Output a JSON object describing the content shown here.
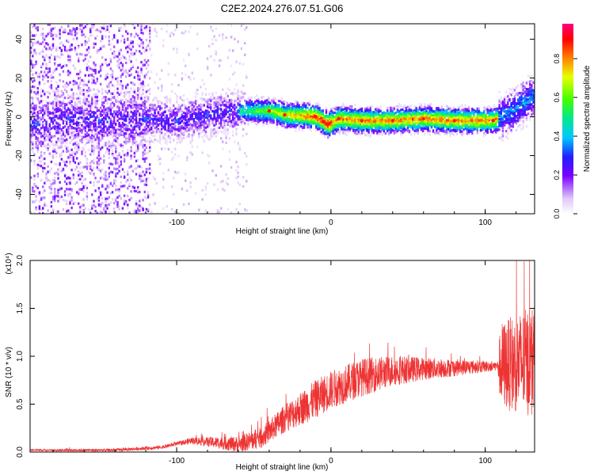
{
  "figure": {
    "title": "C2E2.2024.276.07.51.G06"
  },
  "chart_data": [
    {
      "type": "heatmap",
      "xlabel": "Height of straight line (km)",
      "ylabel": "Frequency (Hz)",
      "xlim": [
        -195,
        132
      ],
      "ylim": [
        -50,
        48
      ],
      "xticks": [
        -100,
        0,
        100
      ],
      "yticks": [
        -40,
        -20,
        0,
        20,
        40
      ],
      "colorbar": {
        "label": "Normalized spectral amplitude",
        "ticks": [
          "0.0",
          "0.2",
          "0.4",
          "0.6",
          "0.8"
        ],
        "tick_values": [
          0,
          0.2,
          0.4,
          0.6,
          0.8
        ],
        "range": [
          0,
          0.98
        ]
      },
      "ridge_frequency": [
        {
          "x": -190,
          "y": -4
        },
        {
          "x": -170,
          "y": -1
        },
        {
          "x": -150,
          "y": -2
        },
        {
          "x": -120,
          "y": -1
        },
        {
          "x": -100,
          "y": -2
        },
        {
          "x": -80,
          "y": 1
        },
        {
          "x": -60,
          "y": 3
        },
        {
          "x": -40,
          "y": 3
        },
        {
          "x": -30,
          "y": 1
        },
        {
          "x": -10,
          "y": 0
        },
        {
          "x": -2,
          "y": -4
        },
        {
          "x": 5,
          "y": -1
        },
        {
          "x": 20,
          "y": -2
        },
        {
          "x": 40,
          "y": -2
        },
        {
          "x": 60,
          "y": -1
        },
        {
          "x": 80,
          "y": -2
        },
        {
          "x": 105,
          "y": -2
        },
        {
          "x": 115,
          "y": 2
        },
        {
          "x": 130,
          "y": 10
        }
      ]
    },
    {
      "type": "line",
      "xlabel": "Height of straight line (km)",
      "ylabel": "SNR (10 * v/v)",
      "yscale_label": "(x10⁴)",
      "xlim": [
        -195,
        132
      ],
      "ylim": [
        0,
        2.0
      ],
      "xticks": [
        -100,
        0,
        100
      ],
      "yticks": [
        "0.0",
        "0.5",
        "1.0",
        "1.5",
        "2.0"
      ],
      "ytick_values": [
        0,
        0.5,
        1.0,
        1.5,
        2.0
      ],
      "series_color": "#ee3333",
      "trend": [
        {
          "x": -195,
          "y": 0.02
        },
        {
          "x": -140,
          "y": 0.02
        },
        {
          "x": -110,
          "y": 0.05
        },
        {
          "x": -90,
          "y": 0.12
        },
        {
          "x": -60,
          "y": 0.08
        },
        {
          "x": -45,
          "y": 0.15
        },
        {
          "x": -30,
          "y": 0.35
        },
        {
          "x": -10,
          "y": 0.55
        },
        {
          "x": 0,
          "y": 0.65
        },
        {
          "x": 20,
          "y": 0.78
        },
        {
          "x": 40,
          "y": 0.85
        },
        {
          "x": 60,
          "y": 0.87
        },
        {
          "x": 80,
          "y": 0.88
        },
        {
          "x": 108,
          "y": 0.9
        },
        {
          "x": 132,
          "y": 0.95
        }
      ],
      "spread": [
        {
          "x": -195,
          "y": 0.01
        },
        {
          "x": -100,
          "y": 0.02
        },
        {
          "x": -80,
          "y": 0.05
        },
        {
          "x": -40,
          "y": 0.12
        },
        {
          "x": -10,
          "y": 0.2
        },
        {
          "x": 20,
          "y": 0.2
        },
        {
          "x": 60,
          "y": 0.12
        },
        {
          "x": 100,
          "y": 0.06
        },
        {
          "x": 108,
          "y": 0.05
        },
        {
          "x": 110,
          "y": 0.45
        },
        {
          "x": 132,
          "y": 0.6
        }
      ]
    }
  ],
  "colors": {
    "series": "#ee3333",
    "axis": "#000000"
  }
}
